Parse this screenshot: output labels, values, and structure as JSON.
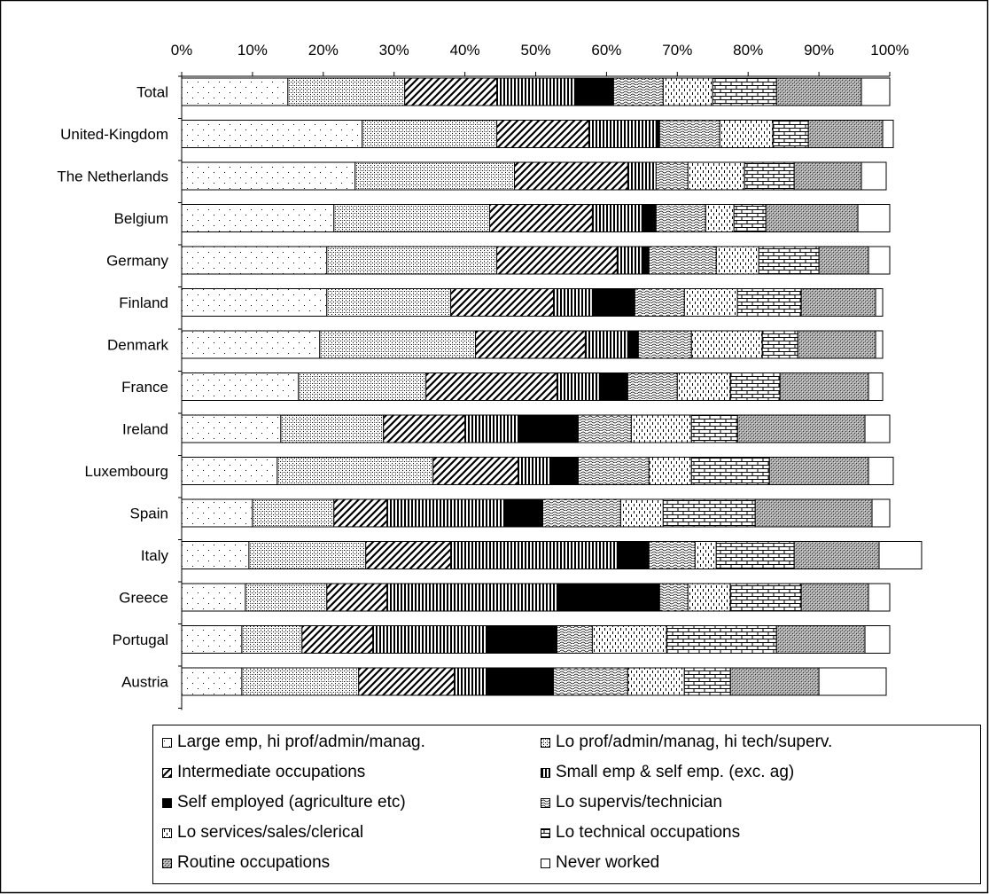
{
  "chart_data": {
    "type": "bar",
    "orientation": "horizontal",
    "stacked": true,
    "categories": [
      "Total",
      "United-Kingdom",
      "The Netherlands",
      "Belgium",
      "Germany",
      "Finland",
      "Denmark",
      "France",
      "Ireland",
      "Luxembourg",
      "Spain",
      "Italy",
      "Greece",
      "Portugal",
      "Austria"
    ],
    "x_ticks": [
      "0%",
      "10%",
      "20%",
      "30%",
      "40%",
      "50%",
      "60%",
      "70%",
      "80%",
      "90%",
      "100%"
    ],
    "xlim": [
      0,
      100
    ],
    "legend_position": "bottom",
    "series": [
      {
        "name": "Large emp, hi prof/admin/manag.",
        "pattern": "dots-sparse",
        "values": [
          15,
          25.5,
          24.5,
          21.5,
          20.5,
          20.5,
          19.5,
          16.5,
          14,
          13.5,
          10,
          9.5,
          9,
          8.5,
          8.5
        ]
      },
      {
        "name": "Lo prof/admin/manag, hi tech/superv.",
        "pattern": "dots-dense",
        "values": [
          16.5,
          19,
          22.5,
          22,
          24,
          17.5,
          22,
          18,
          14.5,
          22,
          11.5,
          16.5,
          11.5,
          8.5,
          16.5
        ]
      },
      {
        "name": "Intermediate occupations",
        "pattern": "diagonal",
        "values": [
          13,
          13,
          16,
          14.5,
          17,
          14.5,
          15.5,
          18.5,
          11.5,
          12,
          7.5,
          12,
          8.5,
          10,
          13.5
        ]
      },
      {
        "name": "Small emp & self emp. (exc. ag)",
        "pattern": "vertical",
        "values": [
          11,
          9.5,
          4,
          7,
          3.5,
          5.5,
          6,
          6,
          7.5,
          4.5,
          16.5,
          23.5,
          24,
          16,
          4.5
        ]
      },
      {
        "name": "Self employed  (agriculture etc)",
        "pattern": "solid",
        "values": [
          5.5,
          0.5,
          0,
          2,
          1,
          6,
          1.5,
          4,
          8.5,
          4,
          5.5,
          4.5,
          14.5,
          10,
          9.5
        ]
      },
      {
        "name": "Lo supervis/technician",
        "pattern": "wavy",
        "values": [
          7,
          8.5,
          4.5,
          7,
          9.5,
          7,
          7.5,
          7,
          7.5,
          10,
          11,
          6.5,
          4,
          5,
          10.5
        ]
      },
      {
        "name": "Lo services/sales/clerical",
        "pattern": "dashes",
        "values": [
          7,
          7.5,
          8,
          4,
          6,
          7.5,
          10,
          7.5,
          8.5,
          6,
          6,
          3,
          6,
          10.5,
          8
        ]
      },
      {
        "name": "Lo  technical occupations",
        "pattern": "brick",
        "values": [
          9,
          5,
          7,
          4.5,
          8.5,
          9,
          5,
          7,
          6.5,
          11,
          13,
          11,
          10,
          15.5,
          6.5
        ]
      },
      {
        "name": "Routine occupations",
        "pattern": "cross",
        "values": [
          12,
          10.5,
          9.5,
          13,
          7,
          10.5,
          11,
          12.5,
          18,
          14,
          16.5,
          12,
          9.5,
          12.5,
          12.5
        ]
      },
      {
        "name": "Never worked",
        "pattern": "blank",
        "values": [
          4,
          1.5,
          3.5,
          4.5,
          3,
          1,
          1,
          2,
          3.5,
          3.5,
          2.5,
          6,
          3,
          3.5,
          9.5
        ]
      }
    ]
  }
}
